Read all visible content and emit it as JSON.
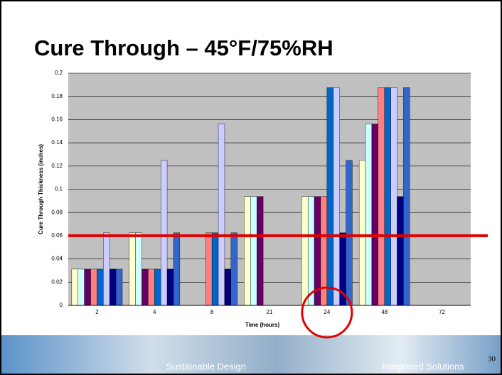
{
  "title": "Cure Through – 45°F/75%RH",
  "footer": {
    "left": "Sustainable Design",
    "right": "Integrated Solutions",
    "page": "30"
  },
  "chart_data": {
    "type": "bar",
    "x_label": "Time (hours)",
    "y_label": "Cure Through Thickness (inches)",
    "categories": [
      "2",
      "4",
      "8",
      "21",
      "24",
      "48",
      "72"
    ],
    "series": [
      {
        "color": "#ffffcc",
        "values": [
          0.03125,
          0.0625,
          null,
          0.09375,
          0.09375,
          0.125,
          null
        ]
      },
      {
        "color": "#ccffff",
        "values": [
          0.03125,
          0.0625,
          null,
          0.09375,
          0.09375,
          0.15625,
          null
        ]
      },
      {
        "color": "#660066",
        "values": [
          0.03125,
          0.03125,
          null,
          0.09375,
          0.09375,
          0.15625,
          null
        ]
      },
      {
        "color": "#ff8080",
        "values": [
          0.03125,
          0.03125,
          0.0625,
          null,
          0.09375,
          0.1875,
          null
        ]
      },
      {
        "color": "#0066cc",
        "values": [
          0.03125,
          0.03125,
          0.0625,
          null,
          0.1875,
          0.1875,
          null
        ]
      },
      {
        "color": "#ccccff",
        "values": [
          0.0625,
          0.125,
          0.15625,
          null,
          0.1875,
          0.1875,
          null
        ]
      },
      {
        "color": "#000080",
        "values": [
          0.03125,
          0.03125,
          0.03125,
          null,
          0.0625,
          0.09375,
          null
        ]
      },
      {
        "color": "#3366cc",
        "values": [
          0.03125,
          0.0625,
          0.0625,
          null,
          0.125,
          0.1875,
          null
        ]
      }
    ],
    "ylim": [
      0,
      0.2
    ],
    "yticks": [
      0,
      0.02,
      0.04,
      0.06,
      0.08,
      0.1,
      0.12,
      0.14,
      0.16,
      0.18,
      0.2
    ],
    "grid": true,
    "plot_color": "#c0c0c0",
    "reference_line": {
      "value": 0.06,
      "color": "#e00000"
    },
    "highlight_category": 4
  }
}
